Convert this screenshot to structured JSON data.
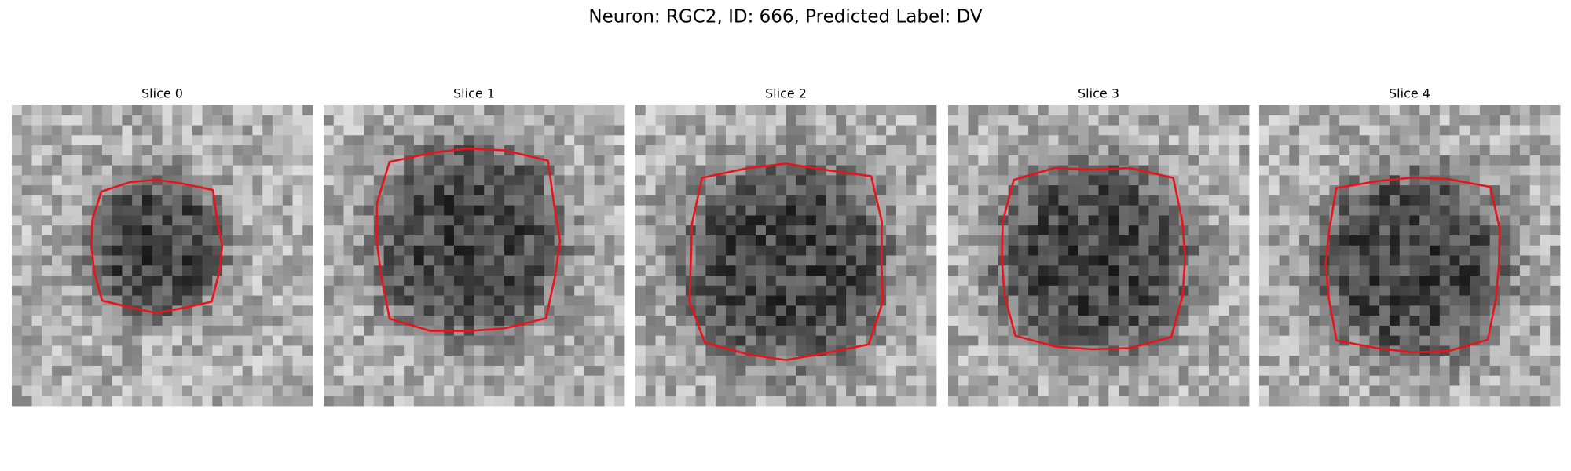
{
  "title": "Neuron: RGC2, ID: 666, Predicted Label: DV",
  "panels": [
    {
      "title": "Slice 0"
    },
    {
      "title": "Slice 1"
    },
    {
      "title": "Slice 2"
    },
    {
      "title": "Slice 3"
    },
    {
      "title": "Slice 4"
    }
  ]
}
